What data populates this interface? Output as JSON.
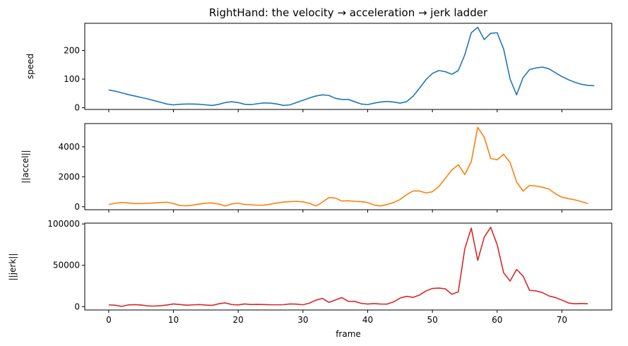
{
  "chart_data": {
    "type": "line",
    "title": "RightHand: the velocity → acceleration → jerk ladder",
    "xlabel": "frame",
    "xlim": [
      -3.7,
      77.7
    ],
    "xticks": [
      0,
      10,
      20,
      30,
      40,
      50,
      60,
      70
    ],
    "sharex": true,
    "grid": false,
    "panels": [
      {
        "ylabel": "speed",
        "color": "#1f77b4",
        "ylim": [
          -6,
          295
        ],
        "yticks": [
          0,
          100,
          200
        ],
        "values": [
          62,
          58,
          52,
          46,
          41,
          36,
          31,
          25,
          19,
          13,
          10,
          12,
          13,
          13,
          12,
          10,
          8,
          12,
          18,
          21,
          18,
          12,
          11,
          14,
          17,
          16,
          13,
          8,
          10,
          18,
          26,
          34,
          41,
          45,
          43,
          33,
          29,
          29,
          21,
          13,
          11,
          16,
          20,
          22,
          20,
          16,
          21,
          40,
          68,
          98,
          120,
          130,
          126,
          117,
          130,
          185,
          262,
          281,
          238,
          260,
          262,
          205,
          100,
          45,
          105,
          133,
          139,
          142,
          136,
          122,
          109,
          98,
          89,
          82,
          78,
          77
        ]
      },
      {
        "ylabel": "||accel||",
        "color": "#ff7f0e",
        "ylim": [
          -200,
          5550
        ],
        "yticks": [
          0,
          2000,
          4000
        ],
        "values": [
          150,
          230,
          280,
          250,
          210,
          210,
          230,
          250,
          280,
          300,
          210,
          80,
          60,
          110,
          180,
          240,
          250,
          180,
          50,
          190,
          230,
          150,
          130,
          100,
          110,
          170,
          250,
          310,
          340,
          360,
          320,
          230,
          50,
          300,
          610,
          580,
          380,
          400,
          360,
          340,
          280,
          110,
          50,
          150,
          280,
          480,
          800,
          1050,
          1050,
          920,
          1000,
          1350,
          1900,
          2450,
          2800,
          2150,
          3000,
          5300,
          4650,
          3230,
          3130,
          3500,
          2950,
          1650,
          1050,
          1420,
          1380,
          1300,
          1180,
          860,
          640,
          540,
          460,
          340,
          220
        ]
      },
      {
        "ylabel": "||jerk||",
        "color": "#d62728",
        "ylim": [
          -4000,
          101000
        ],
        "yticks": [
          0,
          50000,
          100000
        ],
        "values": [
          2200,
          1800,
          400,
          2100,
          2500,
          2000,
          1000,
          700,
          1200,
          2000,
          3300,
          2600,
          1800,
          2200,
          2600,
          1900,
          1600,
          3500,
          4600,
          2600,
          2100,
          3300,
          2600,
          2800,
          2600,
          2300,
          2300,
          2400,
          3300,
          3100,
          2300,
          4300,
          7900,
          10000,
          5200,
          8100,
          11000,
          6500,
          6400,
          4000,
          3200,
          3700,
          3200,
          3100,
          5800,
          10400,
          12500,
          11300,
          14000,
          19000,
          22000,
          22500,
          21500,
          15000,
          18000,
          70000,
          95000,
          56000,
          84000,
          96000,
          75000,
          41000,
          31000,
          45000,
          37000,
          19800,
          19000,
          17000,
          13000,
          11000,
          8000,
          4500,
          3500,
          3800,
          3500
        ]
      }
    ]
  }
}
